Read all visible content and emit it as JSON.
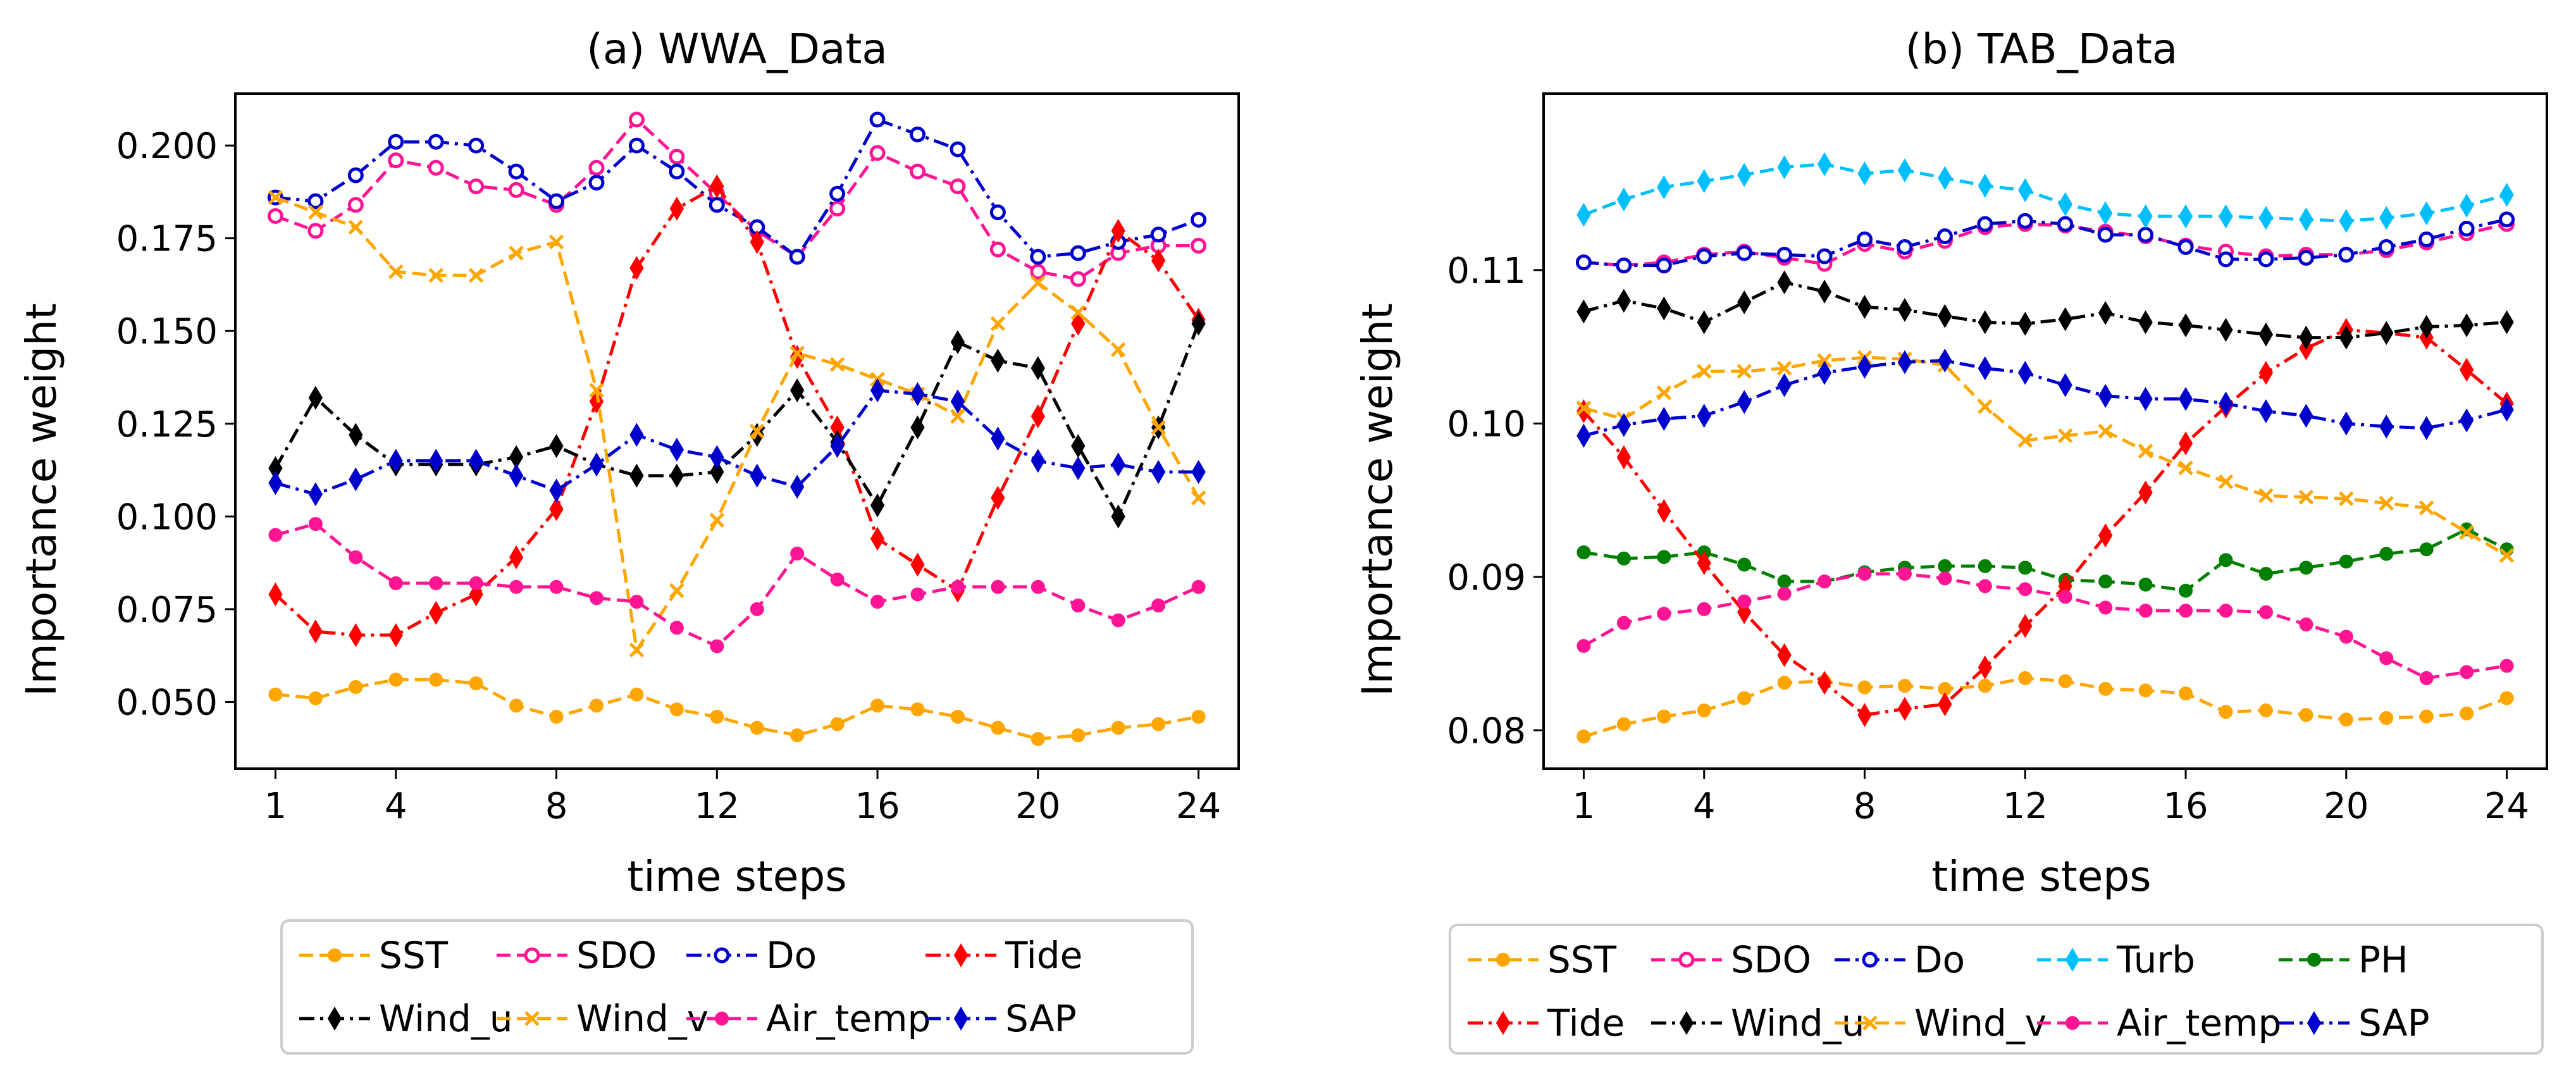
{
  "chart_data": [
    {
      "type": "line",
      "title": "(a) WWA_Data",
      "xlabel": "time steps",
      "ylabel": "Importance weight",
      "xlim": [
        0,
        25
      ],
      "ylim": [
        0.032,
        0.214
      ],
      "xticks": [
        1,
        4,
        8,
        12,
        16,
        20,
        24
      ],
      "yticks": [
        0.05,
        0.075,
        0.1,
        0.125,
        0.15,
        0.175,
        0.2
      ],
      "ytick_labels": [
        "0.050",
        "0.075",
        "0.100",
        "0.125",
        "0.150",
        "0.175",
        "0.200"
      ],
      "x": [
        1,
        2,
        3,
        4,
        5,
        6,
        7,
        8,
        9,
        10,
        11,
        12,
        13,
        14,
        15,
        16,
        17,
        18,
        19,
        20,
        21,
        22,
        23,
        24
      ],
      "legend_columns": 4,
      "series": [
        {
          "name": "SST",
          "color": "#ffa500",
          "dash": "dashed",
          "marker": "circle",
          "values": [
            0.052,
            0.051,
            0.054,
            0.056,
            0.056,
            0.055,
            0.049,
            0.046,
            0.049,
            0.052,
            0.048,
            0.046,
            0.043,
            0.041,
            0.044,
            0.049,
            0.048,
            0.046,
            0.043,
            0.04,
            0.041,
            0.043,
            0.044,
            0.046
          ]
        },
        {
          "name": "SDO",
          "color": "#ff1493",
          "dash": "dashed",
          "marker": "open-circle",
          "values": [
            0.181,
            0.177,
            0.184,
            0.196,
            0.194,
            0.189,
            0.188,
            0.184,
            0.194,
            0.207,
            0.197,
            0.187,
            0.177,
            0.17,
            0.183,
            0.198,
            0.193,
            0.189,
            0.172,
            0.166,
            0.164,
            0.171,
            0.173,
            0.173
          ]
        },
        {
          "name": "Do",
          "color": "#0000cd",
          "dash": "dashdot",
          "marker": "open-circle",
          "values": [
            0.186,
            0.185,
            0.192,
            0.201,
            0.201,
            0.2,
            0.193,
            0.185,
            0.19,
            0.2,
            0.193,
            0.184,
            0.178,
            0.17,
            0.187,
            0.207,
            0.203,
            0.199,
            0.182,
            0.17,
            0.171,
            0.174,
            0.176,
            0.18
          ]
        },
        {
          "name": "Tide",
          "color": "#ff0000",
          "dash": "dashdot",
          "marker": "diamond",
          "values": [
            0.079,
            0.069,
            0.068,
            0.068,
            0.074,
            0.079,
            0.089,
            0.102,
            0.131,
            0.167,
            0.183,
            0.189,
            0.174,
            0.143,
            0.124,
            0.094,
            0.087,
            0.08,
            0.105,
            0.127,
            0.152,
            0.177,
            0.169,
            0.153
          ]
        },
        {
          "name": "Wind_u",
          "color": "#000000",
          "dash": "dashdot",
          "marker": "diamond",
          "values": [
            0.113,
            0.132,
            0.122,
            0.114,
            0.114,
            0.114,
            0.116,
            0.119,
            0.114,
            0.111,
            0.111,
            0.112,
            0.122,
            0.134,
            0.12,
            0.103,
            0.124,
            0.147,
            0.142,
            0.14,
            0.119,
            0.1,
            0.124,
            0.152
          ]
        },
        {
          "name": "Wind_v",
          "color": "#ffa500",
          "dash": "dashed",
          "marker": "x",
          "values": [
            0.186,
            0.182,
            0.178,
            0.166,
            0.165,
            0.165,
            0.171,
            0.174,
            0.134,
            0.064,
            0.08,
            0.099,
            0.123,
            0.144,
            0.141,
            0.137,
            0.133,
            0.127,
            0.152,
            0.163,
            0.155,
            0.145,
            0.124,
            0.105
          ]
        },
        {
          "name": "Air_temp",
          "color": "#ff1493",
          "dash": "dashed",
          "marker": "circle",
          "values": [
            0.095,
            0.098,
            0.089,
            0.082,
            0.082,
            0.082,
            0.081,
            0.081,
            0.078,
            0.077,
            0.07,
            0.065,
            0.075,
            0.09,
            0.083,
            0.077,
            0.079,
            0.081,
            0.081,
            0.081,
            0.076,
            0.072,
            0.076,
            0.081
          ]
        },
        {
          "name": "SAP",
          "color": "#0000cd",
          "dash": "dashdot",
          "marker": "diamond",
          "values": [
            0.109,
            0.106,
            0.11,
            0.115,
            0.115,
            0.115,
            0.111,
            0.107,
            0.114,
            0.122,
            0.118,
            0.116,
            0.111,
            0.108,
            0.119,
            0.134,
            0.133,
            0.131,
            0.121,
            0.115,
            0.113,
            0.114,
            0.112,
            0.112
          ]
        }
      ]
    },
    {
      "type": "line",
      "title": "(b) TAB_Data",
      "xlabel": "time steps",
      "ylabel": "Importance weight",
      "xlim": [
        0,
        25
      ],
      "ylim": [
        0.0775,
        0.1215
      ],
      "xticks": [
        1,
        4,
        8,
        12,
        16,
        20,
        24
      ],
      "yticks": [
        0.08,
        0.09,
        0.1,
        0.11
      ],
      "ytick_labels": [
        "0.08",
        "0.09",
        "0.10",
        "0.11"
      ],
      "x": [
        1,
        2,
        3,
        4,
        5,
        6,
        7,
        8,
        9,
        10,
        11,
        12,
        13,
        14,
        15,
        16,
        17,
        18,
        19,
        20,
        21,
        22,
        23,
        24
      ],
      "legend_columns": 5,
      "series": [
        {
          "name": "SST",
          "color": "#ffa500",
          "dash": "dashed",
          "marker": "circle",
          "values": [
            0.0796,
            0.0804,
            0.0809,
            0.0813,
            0.0821,
            0.0831,
            0.0832,
            0.0828,
            0.0829,
            0.0827,
            0.0829,
            0.0834,
            0.0832,
            0.0827,
            0.0826,
            0.0824,
            0.0812,
            0.0813,
            0.081,
            0.0807,
            0.0808,
            0.0809,
            0.0811,
            0.0821
          ]
        },
        {
          "name": "SDO",
          "color": "#ff1493",
          "dash": "dashed",
          "marker": "open-circle",
          "values": [
            0.1105,
            0.1103,
            0.1105,
            0.111,
            0.1112,
            0.1108,
            0.1104,
            0.1117,
            0.1112,
            0.1119,
            0.1128,
            0.113,
            0.1129,
            0.1125,
            0.1122,
            0.1116,
            0.1112,
            0.1109,
            0.111,
            0.111,
            0.1113,
            0.1118,
            0.1124,
            0.113
          ]
        },
        {
          "name": "Do",
          "color": "#0000cd",
          "dash": "dashdot",
          "marker": "open-circle",
          "values": [
            0.1105,
            0.1103,
            0.1103,
            0.1109,
            0.1111,
            0.111,
            0.1109,
            0.112,
            0.1115,
            0.1122,
            0.113,
            0.1132,
            0.113,
            0.1123,
            0.1123,
            0.1115,
            0.1107,
            0.1107,
            0.1108,
            0.111,
            0.1115,
            0.112,
            0.1127,
            0.1133
          ]
        },
        {
          "name": "Turb",
          "color": "#00bfff",
          "dash": "dashed",
          "marker": "diamond",
          "values": [
            0.1136,
            0.1146,
            0.1154,
            0.1158,
            0.1162,
            0.1167,
            0.1169,
            0.1163,
            0.1165,
            0.116,
            0.1155,
            0.1152,
            0.1143,
            0.1137,
            0.1135,
            0.1135,
            0.1135,
            0.1134,
            0.1133,
            0.1132,
            0.1134,
            0.1137,
            0.1142,
            0.1149
          ]
        },
        {
          "name": "PH",
          "color": "#008000",
          "dash": "dashed",
          "marker": "circle",
          "values": [
            0.0916,
            0.0912,
            0.0913,
            0.0916,
            0.0908,
            0.0897,
            0.0897,
            0.0903,
            0.0906,
            0.0907,
            0.0907,
            0.0906,
            0.0898,
            0.0897,
            0.0895,
            0.0891,
            0.0911,
            0.0902,
            0.0906,
            0.091,
            0.0915,
            0.0918,
            0.0931,
            0.0918
          ]
        },
        {
          "name": "Tide",
          "color": "#ff0000",
          "dash": "dashdot",
          "marker": "diamond",
          "values": [
            0.1008,
            0.0978,
            0.0943,
            0.0909,
            0.0877,
            0.0849,
            0.0831,
            0.081,
            0.0814,
            0.0817,
            0.0841,
            0.0868,
            0.0894,
            0.0927,
            0.0955,
            0.0987,
            0.1011,
            0.1033,
            0.1049,
            0.1061,
            0.1059,
            0.1056,
            0.1035,
            0.1013
          ]
        },
        {
          "name": "Wind_u",
          "color": "#000000",
          "dash": "dashdot",
          "marker": "diamond",
          "values": [
            0.1073,
            0.108,
            0.1075,
            0.1066,
            0.1079,
            0.1092,
            0.1086,
            0.1076,
            0.1074,
            0.107,
            0.1066,
            0.1065,
            0.1068,
            0.1072,
            0.1066,
            0.1064,
            0.1061,
            0.1058,
            0.1056,
            0.1056,
            0.1059,
            0.1063,
            0.1064,
            0.1066
          ]
        },
        {
          "name": "Wind_v",
          "color": "#ffa500",
          "dash": "dashed",
          "marker": "x",
          "values": [
            0.101,
            0.1003,
            0.102,
            0.1034,
            0.1034,
            0.1036,
            0.1041,
            0.1043,
            0.1042,
            0.1038,
            0.1011,
            0.0989,
            0.0992,
            0.0995,
            0.0982,
            0.0971,
            0.0962,
            0.0953,
            0.0952,
            0.0951,
            0.0948,
            0.0945,
            0.0929,
            0.0914
          ]
        },
        {
          "name": "Air_temp",
          "color": "#ff1493",
          "dash": "dashed",
          "marker": "circle",
          "values": [
            0.0855,
            0.087,
            0.0876,
            0.0879,
            0.0884,
            0.0889,
            0.0897,
            0.0902,
            0.0902,
            0.0899,
            0.0894,
            0.0892,
            0.0887,
            0.088,
            0.0878,
            0.0878,
            0.0878,
            0.0877,
            0.0869,
            0.0861,
            0.0847,
            0.0834,
            0.0838,
            0.0842
          ]
        },
        {
          "name": "SAP",
          "color": "#0000cd",
          "dash": "dashdot",
          "marker": "diamond",
          "values": [
            0.0992,
            0.0999,
            0.1003,
            0.1005,
            0.1014,
            0.1025,
            0.1033,
            0.1037,
            0.104,
            0.1041,
            0.1036,
            0.1033,
            0.1025,
            0.1018,
            0.1016,
            0.1016,
            0.1013,
            0.1008,
            0.1005,
            0.1,
            0.0998,
            0.0997,
            0.1002,
            0.1009
          ]
        }
      ]
    }
  ]
}
